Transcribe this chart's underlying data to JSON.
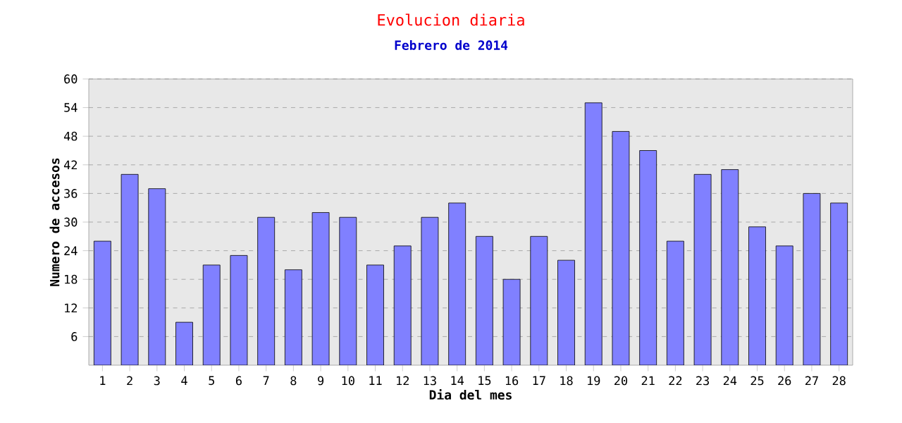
{
  "chart_data": {
    "type": "bar",
    "title": "Evolucion diaria",
    "subtitle": "Febrero de 2014",
    "xlabel": "Dia del mes",
    "ylabel": "Numero de accesos",
    "categories": [
      "1",
      "2",
      "3",
      "4",
      "5",
      "6",
      "7",
      "8",
      "9",
      "10",
      "11",
      "12",
      "13",
      "14",
      "15",
      "16",
      "17",
      "18",
      "19",
      "20",
      "21",
      "22",
      "23",
      "24",
      "25",
      "26",
      "27",
      "28"
    ],
    "values": [
      26,
      40,
      37,
      9,
      21,
      23,
      31,
      20,
      32,
      31,
      21,
      25,
      31,
      34,
      27,
      18,
      27,
      22,
      55,
      49,
      45,
      26,
      40,
      41,
      29,
      25,
      36,
      34
    ],
    "color": "#8080ff",
    "ylim": [
      0,
      60
    ],
    "yticks": [
      6,
      12,
      18,
      24,
      30,
      36,
      42,
      48,
      54,
      60
    ],
    "grid": "y"
  }
}
